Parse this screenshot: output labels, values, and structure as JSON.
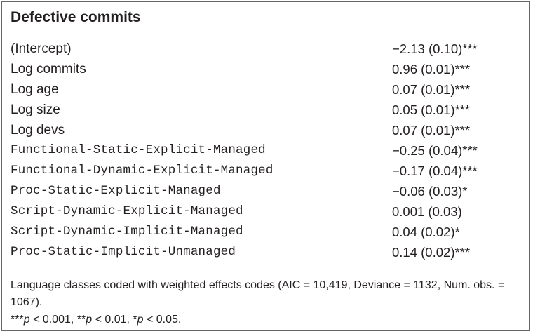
{
  "table": {
    "title": "Defective commits",
    "rows": [
      {
        "label": "(Intercept)",
        "value": "−2.13 (0.10)***",
        "style": "sans"
      },
      {
        "label": "Log commits",
        "value": "0.96 (0.01)***",
        "style": "sans"
      },
      {
        "label": "Log age",
        "value": "0.07 (0.01)***",
        "style": "sans"
      },
      {
        "label": "Log size",
        "value": "0.05 (0.01)***",
        "style": "sans"
      },
      {
        "label": "Log devs",
        "value": "0.07 (0.01)***",
        "style": "sans"
      },
      {
        "label": "Functional-Static-Explicit-Managed",
        "value": "−0.25 (0.04)***",
        "style": "mono"
      },
      {
        "label": "Functional-Dynamic-Explicit-Managed",
        "value": "−0.17 (0.04)***",
        "style": "mono"
      },
      {
        "label": "Proc-Static-Explicit-Managed",
        "value": "−0.06 (0.03)*",
        "style": "mono"
      },
      {
        "label": "Script-Dynamic-Explicit-Managed",
        "value": "0.001 (0.03)",
        "style": "mono"
      },
      {
        "label": "Script-Dynamic-Implicit-Managed",
        "value": "0.04 (0.02)*",
        "style": "mono"
      },
      {
        "label": "Proc-Static-Implicit-Unmanaged",
        "value": "0.14 (0.02)***",
        "style": "mono"
      }
    ],
    "footnote_line1": "Language classes coded with weighted effects codes (AIC = 10,419, Deviance = 1132, Num. obs. = 1067).",
    "footnote_line2": {
      "p1_prefix": "***",
      "p1_var": "p",
      "p1_rest": " < 0.001, **",
      "p2_var": "p",
      "p2_rest": " < 0.01, *",
      "p3_var": "p",
      "p3_rest": " < 0.05."
    }
  }
}
